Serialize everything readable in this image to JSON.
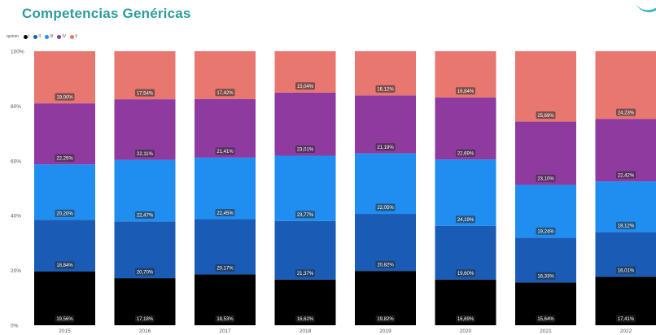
{
  "header": {
    "title": "Competencias Genéricas"
  },
  "chart_data": {
    "type": "bar",
    "stacked": true,
    "percent": true,
    "categories": [
      "2015",
      "2016",
      "2017",
      "2018",
      "2019",
      "2020",
      "2021",
      "2022"
    ],
    "legend_title": "quinen",
    "legend_position": "top-left",
    "ylim": [
      0,
      100
    ],
    "yticks": [
      "0%",
      "20%",
      "40%",
      "60%",
      "80%",
      "100%"
    ],
    "grid": false,
    "series": [
      {
        "name": "I",
        "color": "#000000",
        "values": [
          19.56,
          17.18,
          18.53,
          16.62,
          19.82,
          16.69,
          15.64,
          17.41
        ],
        "labels": [
          "19,56%",
          "17,18%",
          "18,53%",
          "16,62%",
          "19,82%",
          "16,69%",
          "15,64%",
          "17,41%"
        ]
      },
      {
        "name": "II",
        "color": "#1a5bb5",
        "values": [
          18.84,
          20.7,
          20.17,
          21.37,
          20.82,
          19.6,
          16.33,
          16.01
        ],
        "labels": [
          "18,84%",
          "20,70%",
          "20,17%",
          "21,37%",
          "20,82%",
          "19,60%",
          "16,33%",
          "16,01%"
        ]
      },
      {
        "name": "III",
        "color": "#1f8ef0",
        "values": [
          20.2,
          22.47,
          22.45,
          23.77,
          22.05,
          24.19,
          19.24,
          18.12
        ],
        "labels": [
          "20,20%",
          "22,47%",
          "22,45%",
          "23,77%",
          "22,05%",
          "24,19%",
          "19,24%",
          "18,12%"
        ]
      },
      {
        "name": "IV",
        "color": "#8e3a9e",
        "values": [
          22.25,
          22.11,
          21.41,
          23.01,
          21.19,
          22.69,
          23.1,
          22.42
        ],
        "labels": [
          "22,25%",
          "22,11%",
          "21,41%",
          "23,01%",
          "21,19%",
          "22,69%",
          "23,10%",
          "22,42%"
        ]
      },
      {
        "name": "V",
        "color": "#e8776f",
        "values": [
          19.0,
          17.54,
          17.42,
          15.04,
          16.12,
          16.84,
          25.69,
          24.23
        ],
        "labels": [
          "19,00%",
          "17,54%",
          "17,42%",
          "15,04%",
          "16,12%",
          "16,84%",
          "25,69%",
          "24,23%"
        ]
      }
    ]
  }
}
